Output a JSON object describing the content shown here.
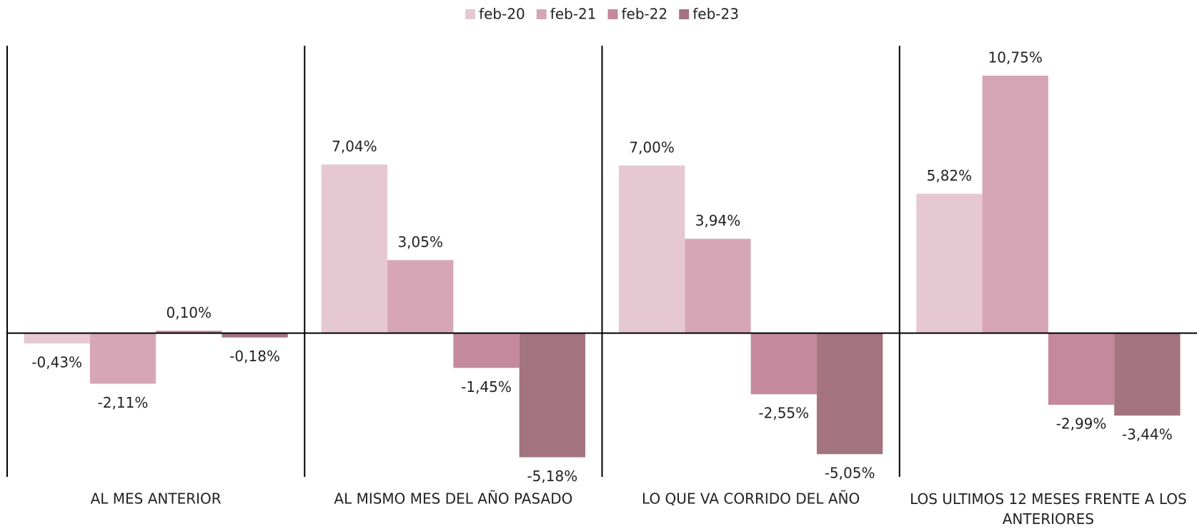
{
  "chart_data": {
    "type": "bar",
    "categories": [
      "AL MES ANTERIOR",
      "AL MISMO MES DEL AÑO PASADO",
      "LO QUE VA CORRIDO DEL AÑO",
      "LOS ULTIMOS 12 MESES FRENTE A LOS ANTERIORES"
    ],
    "series": [
      {
        "name": "feb-20",
        "color": "#e6c8d2",
        "values": [
          -0.43,
          7.04,
          7.0,
          5.82
        ],
        "value_labels": [
          "-0,43%",
          "7,04%",
          "7,00%",
          "5,82%"
        ]
      },
      {
        "name": "feb-21",
        "color": "#d6a6b6",
        "values": [
          -2.11,
          3.05,
          3.94,
          10.75
        ],
        "value_labels": [
          "-2,11%",
          "3,05%",
          "3,94%",
          "10,75%"
        ]
      },
      {
        "name": "feb-22",
        "color": "#c4899c",
        "values": [
          0.1,
          -1.45,
          -2.55,
          -2.99
        ],
        "value_labels": [
          "0,10%",
          "-1,45%",
          "-2,55%",
          "-2,99%"
        ]
      },
      {
        "name": "feb-23",
        "color": "#a3737f",
        "values": [
          -0.18,
          -5.18,
          -5.05,
          -3.44
        ],
        "value_labels": [
          "-0,18%",
          "-5,18%",
          "-5,05%",
          "-3,44%"
        ]
      }
    ],
    "ylim": [
      -6,
      12
    ],
    "legend": "top"
  }
}
